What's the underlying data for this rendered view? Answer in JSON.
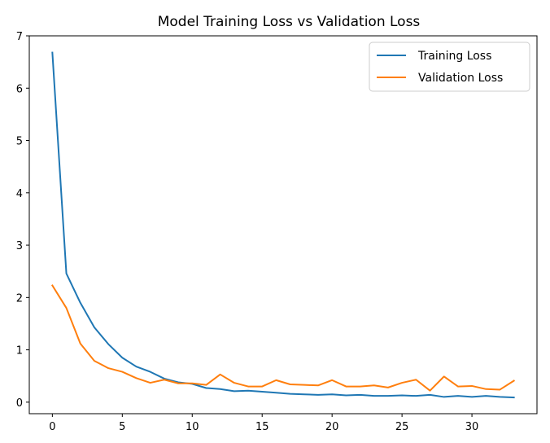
{
  "chart_data": {
    "type": "line",
    "title": "Model Training Loss vs Validation Loss",
    "xlabel": "",
    "ylabel": "",
    "xlim": [
      -1.65,
      34.65
    ],
    "ylim": [
      -0.22,
      7.0
    ],
    "xticks": [
      0,
      5,
      10,
      15,
      20,
      25,
      30
    ],
    "yticks": [
      0,
      1,
      2,
      3,
      4,
      5,
      6,
      7
    ],
    "grid": false,
    "legend_position": "top-right",
    "x": [
      0,
      1,
      2,
      3,
      4,
      5,
      6,
      7,
      8,
      9,
      10,
      11,
      12,
      13,
      14,
      15,
      16,
      17,
      18,
      19,
      20,
      21,
      22,
      23,
      24,
      25,
      26,
      27,
      28,
      29,
      30,
      31,
      32,
      33
    ],
    "series": [
      {
        "name": "Training Loss",
        "color": "#1f77b4",
        "values": [
          6.68,
          2.46,
          1.9,
          1.43,
          1.11,
          0.85,
          0.68,
          0.58,
          0.45,
          0.38,
          0.35,
          0.27,
          0.25,
          0.21,
          0.22,
          0.2,
          0.18,
          0.16,
          0.15,
          0.14,
          0.15,
          0.13,
          0.14,
          0.12,
          0.12,
          0.13,
          0.12,
          0.14,
          0.1,
          0.12,
          0.1,
          0.12,
          0.1,
          0.09
        ]
      },
      {
        "name": "Validation Loss",
        "color": "#ff7f0e",
        "values": [
          2.23,
          1.8,
          1.12,
          0.79,
          0.65,
          0.58,
          0.46,
          0.37,
          0.43,
          0.36,
          0.36,
          0.33,
          0.53,
          0.37,
          0.3,
          0.3,
          0.42,
          0.34,
          0.33,
          0.32,
          0.42,
          0.3,
          0.3,
          0.32,
          0.28,
          0.37,
          0.43,
          0.22,
          0.49,
          0.3,
          0.31,
          0.25,
          0.24,
          0.41
        ]
      }
    ]
  }
}
